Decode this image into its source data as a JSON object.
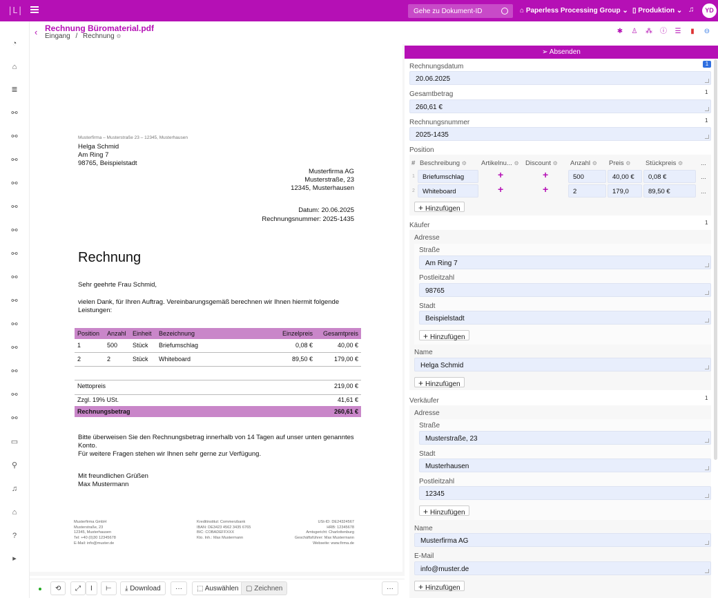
{
  "topbar": {
    "logo": "|L|",
    "search_placeholder": "Gehe zu Dokument-ID",
    "group": "Paperless Processing Group",
    "environment": "Produktion",
    "avatar_initials": "YD",
    "accent": "#b510b5"
  },
  "header": {
    "title": "Rechnung Büromaterial.pdf",
    "crumb_1": "Eingang",
    "crumb_sep": "/",
    "crumb_2": "Rechnung"
  },
  "document": {
    "sender_line": "Musterfirma – Musterstraße 23 – 12345, Musterhausen",
    "recipient": [
      "Helga Schmid",
      "Am Ring 7",
      "98765, Beispielstadt"
    ],
    "company": [
      "Musterfirma AG",
      "Musterstraße, 23",
      "12345, Musterhausen"
    ],
    "date_line": "Datum: 20.06.2025",
    "number_line": "Rechnungsnummer: 2025-1435",
    "heading": "Rechnung",
    "salutation": "Sehr geehrte Frau Schmid,",
    "intro_1": "vielen Dank, für Ihren Auftrag. Vereinbarungsgemäß berechnen wir Ihnen hiermit folgende",
    "intro_2": "Leistungen:",
    "table_headers": [
      "Position",
      "Anzahl",
      "Einheit",
      "Bezeichnung",
      "Einzelpreis",
      "Gesamtpreis"
    ],
    "rows": [
      [
        "1",
        "500",
        "Stück",
        "Briefumschlag",
        "0,08 €",
        "40,00 €"
      ],
      [
        "2",
        "2",
        "Stück",
        "Whiteboard",
        "89,50 €",
        "179,00 €"
      ]
    ],
    "net_label": "Nettopreis",
    "net_value": "219,00 €",
    "vat_label": "Zzgl. 19% USt.",
    "vat_value": "41,61 €",
    "total_label": "Rechnungsbetrag",
    "total_value": "260,61 €",
    "closing_1": "Bitte überweisen Sie den Rechnungsbetrag innerhalb von 14 Tagen auf unser unten genanntes",
    "closing_2": "Konto.",
    "closing_3": "Für weitere Fragen stehen wir Ihnen sehr gerne zur Verfügung.",
    "greeting": "Mit freundlichen Grüßen",
    "signature": "Max Mustermann",
    "footer_col1": [
      "Musterfirma GmbH",
      "Musterstraße, 23",
      "12345, Musterhausen",
      "Tel: +40 (0)30 12345678",
      "E-Mail: info@muster.de"
    ],
    "footer_col2": [
      "Kreditinstitut: Commerzbank",
      "IBAN: DE3423 4562 3435 6765",
      "BIC: COBADEFFXXX",
      "Kto. Inh.: Max Mustermann"
    ],
    "footer_col3": [
      "USt-ID: DE24324567",
      "HRB: 12345678",
      "Amtsgericht: Charlottenburg",
      "Geschäftsführer: Max Mustermann",
      "Webseite: www.firma.de"
    ]
  },
  "bottombar": {
    "download": "Download",
    "more": "···",
    "select": "Auswählen",
    "draw": "Zeichnen"
  },
  "panel": {
    "submit": "Absenden",
    "add": "Hinzufügen",
    "invoice_date_label": "Rechnungsdatum",
    "invoice_date": "20.06.2025",
    "invoice_date_badge": "1",
    "total_label": "Gesamtbetrag",
    "total": "260,61 €",
    "total_badge": "1",
    "number_label": "Rechnungsnummer",
    "number": "2025-1435",
    "number_badge": "1",
    "position_label": "Position",
    "position_headers": [
      "#",
      "Beschreibung",
      "Artikelnu...",
      "Discount",
      "Anzahl",
      "Preis",
      "Stückpreis",
      "..."
    ],
    "positions": [
      {
        "n": "1",
        "desc": "Briefumschlag",
        "qty": "500",
        "price": "40,00 €",
        "unit": "0,08 €"
      },
      {
        "n": "2",
        "desc": "Whiteboard",
        "qty": "2",
        "price": "179,0",
        "unit": "89,50 €"
      }
    ],
    "ellipsis": "...",
    "buyer_label": "Käufer",
    "buyer_badge": "1",
    "address_label": "Adresse",
    "street_label": "Straße",
    "zip_label": "Postleitzahl",
    "city_label": "Stadt",
    "name_label": "Name",
    "email_label": "E-Mail",
    "buyer_street": "Am Ring 7",
    "buyer_zip": "98765",
    "buyer_city": "Beispielstadt",
    "buyer_name": "Helga Schmid",
    "seller_label": "Verkäufer",
    "seller_badge": "1",
    "seller_street": "Musterstraße, 23",
    "seller_city": "Musterhausen",
    "seller_zip": "12345",
    "seller_name": "Musterfirma AG",
    "seller_email": "info@muster.de"
  }
}
